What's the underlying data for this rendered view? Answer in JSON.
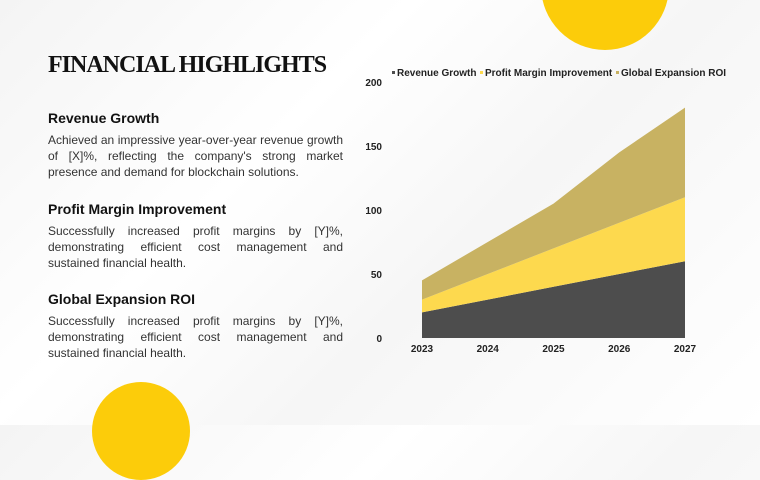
{
  "title": "FINANCIAL HIGHLIGHTS",
  "sections": [
    {
      "heading": "Revenue Growth",
      "body": "Achieved an impressive year-over-year revenue growth of [X]%, reflecting the company's strong market presence and demand for blockchain solutions."
    },
    {
      "heading": "Profit Margin Improvement",
      "body": "Successfully increased profit margins by [Y]%, demonstrating efficient cost management and sustained financial health."
    },
    {
      "heading": "Global Expansion ROI",
      "body": "Successfully increased profit margins by [Y]%, demonstrating efficient cost management and sustained financial health."
    }
  ],
  "colors": {
    "accent": "#fccc0a"
  },
  "chart_data": {
    "type": "area",
    "stacked": true,
    "categories": [
      "2023",
      "2024",
      "2025",
      "2026",
      "2027"
    ],
    "ylim": [
      0,
      200
    ],
    "yticks": [
      0,
      50,
      100,
      150,
      200
    ],
    "legend_position": "top",
    "grid": false,
    "series": [
      {
        "name": "Revenue Growth",
        "values": [
          20,
          30,
          40,
          50,
          60
        ],
        "color": "#4d4d4d"
      },
      {
        "name": "Profit Margin Improvement",
        "values": [
          10,
          20,
          30,
          40,
          50
        ],
        "color": "#fdd94e"
      },
      {
        "name": "Global Expansion ROI",
        "values": [
          15,
          25,
          35,
          55,
          70
        ],
        "color": "#c8b262"
      }
    ]
  }
}
